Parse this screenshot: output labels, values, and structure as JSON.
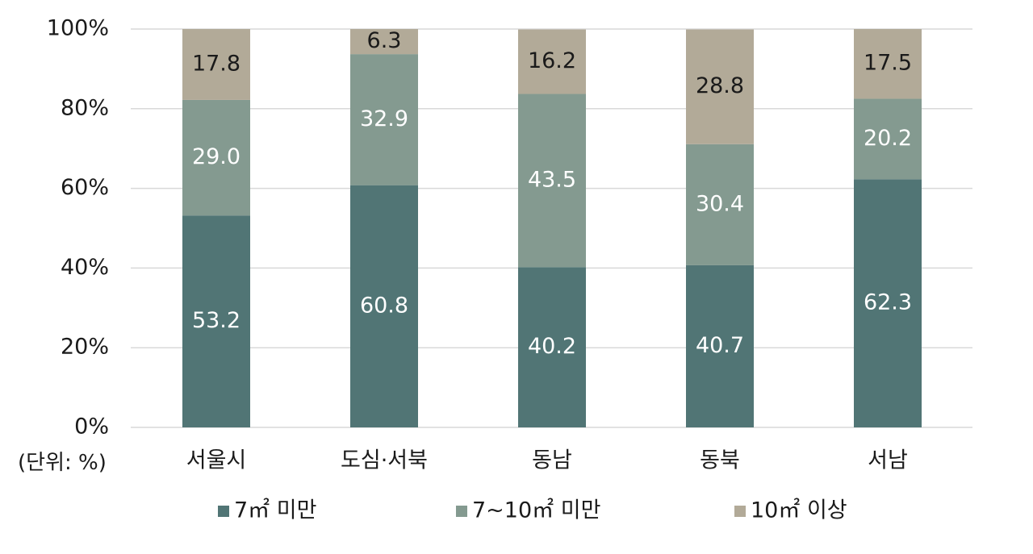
{
  "chart_data": {
    "type": "bar",
    "stacked": true,
    "categories": [
      "서울시",
      "도심·서북",
      "동남",
      "동북",
      "서남"
    ],
    "series": [
      {
        "name": "7㎡ 미만",
        "values": [
          53.2,
          60.8,
          40.2,
          40.7,
          62.3
        ],
        "color": "#517575",
        "label_color": "#ffffff"
      },
      {
        "name": "7~10㎡ 미만",
        "values": [
          29.0,
          32.9,
          43.5,
          30.4,
          20.2
        ],
        "color": "#849a90",
        "label_color": "#ffffff"
      },
      {
        "name": "10㎡ 이상",
        "values": [
          17.8,
          6.3,
          16.2,
          28.8,
          17.5
        ],
        "color": "#b2aa98",
        "label_color": "#1a1a1a"
      }
    ],
    "data_labels": [
      [
        "53.2",
        "60.8",
        "40.2",
        "40.7",
        "62.3"
      ],
      [
        "29.0",
        "32.9",
        "43.5",
        "30.4",
        "20.2"
      ],
      [
        "17.8",
        "6.3",
        "16.2",
        "28.8",
        "17.5"
      ]
    ],
    "yticks": [
      "0%",
      "20%",
      "40%",
      "60%",
      "80%",
      "100%"
    ],
    "ylim": [
      0,
      100
    ],
    "unit_label": "(단위: %)",
    "grid": true,
    "legend_position": "bottom"
  }
}
